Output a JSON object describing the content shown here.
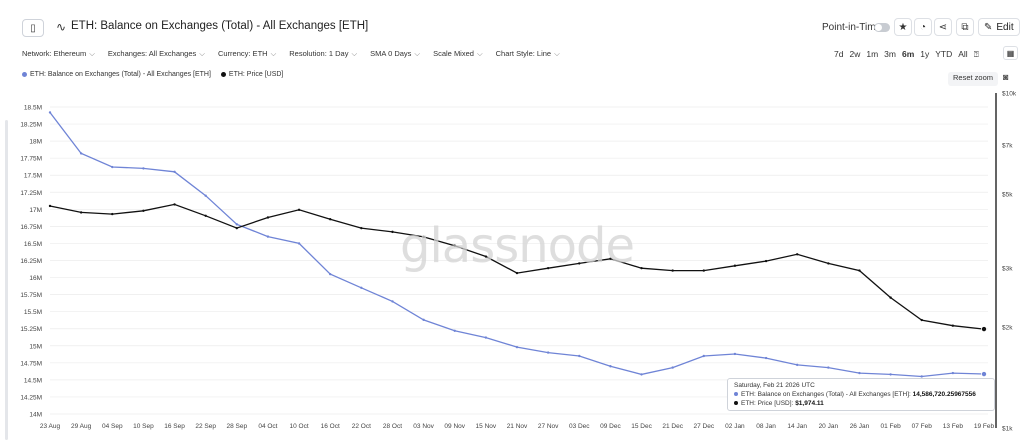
{
  "header": {
    "title": "ETH: Balance on Exchanges (Total) - All Exchanges [ETH]",
    "point_in_time_label": "Point-in-Time",
    "edit_label": "Edit"
  },
  "filters": [
    "Network: Ethereum",
    "Exchanges: All Exchanges",
    "Currency: ETH",
    "Resolution: 1 Day",
    "SMA 0 Days",
    "Scale Mixed",
    "Chart Style: Line"
  ],
  "ranges": [
    "7d",
    "2w",
    "1m",
    "3m",
    "6m",
    "1y",
    "YTD",
    "All"
  ],
  "active_range": "6m",
  "reset_zoom_label": "Reset zoom",
  "watermark": "glassnode",
  "tooltip": {
    "date": "Saturday, Feb 21 2026 UTC",
    "series1_label": "ETH: Balance on Exchanges (Total) - All Exchanges [ETH]:",
    "series1_value": "14,586,720.25967556",
    "series2_label": "ETH: Price [USD]:",
    "series2_value": "$1,974.11"
  },
  "colors": {
    "balance": "#6f84d6",
    "price": "#111111",
    "grid": "#ececec"
  },
  "chart_data": {
    "type": "line",
    "x_categories": [
      "23 Aug",
      "29 Aug",
      "04 Sep",
      "10 Sep",
      "16 Sep",
      "22 Sep",
      "28 Sep",
      "04 Oct",
      "10 Oct",
      "16 Oct",
      "22 Oct",
      "28 Oct",
      "03 Nov",
      "09 Nov",
      "15 Nov",
      "21 Nov",
      "27 Nov",
      "03 Dec",
      "09 Dec",
      "15 Dec",
      "21 Dec",
      "27 Dec",
      "02 Jan",
      "08 Jan",
      "14 Jan",
      "20 Jan",
      "26 Jan",
      "01 Feb",
      "07 Feb",
      "13 Feb",
      "19 Feb"
    ],
    "left_axis": {
      "ylim": [
        14000000,
        18500000
      ],
      "ticks": [
        18500000,
        18250000,
        18000000,
        17750000,
        17500000,
        17250000,
        17000000,
        16750000,
        16500000,
        16250000,
        16000000,
        15750000,
        15500000,
        15250000,
        15000000,
        14750000,
        14500000,
        14250000,
        14000000
      ],
      "tick_labels": [
        "18.5M",
        "18.25M",
        "18M",
        "17.75M",
        "17.5M",
        "17.25M",
        "17M",
        "16.75M",
        "16.5M",
        "16.25M",
        "16M",
        "15.75M",
        "15.5M",
        "15.25M",
        "15M",
        "14.75M",
        "14.5M",
        "14.25M",
        "14M"
      ]
    },
    "right_axis": {
      "scale": "log",
      "ylim": [
        1000,
        10000
      ],
      "ticks": [
        10000,
        7000,
        5000,
        3000,
        2000,
        1000
      ],
      "tick_labels": [
        "$10k",
        "$7k",
        "$5k",
        "$3k",
        "$2k",
        "$1k"
      ]
    },
    "series": [
      {
        "name": "ETH: Balance on Exchanges (Total) - All Exchanges [ETH]",
        "axis": "left",
        "values": [
          18.42,
          17.82,
          17.62,
          17.6,
          17.55,
          17.2,
          16.78,
          16.6,
          16.5,
          16.05,
          15.85,
          15.65,
          15.38,
          15.22,
          15.12,
          14.98,
          14.9,
          14.85,
          14.7,
          14.58,
          14.68,
          14.85,
          14.88,
          14.82,
          14.72,
          14.68,
          14.6,
          14.58,
          14.55,
          14.6,
          14.586
        ]
      },
      {
        "name": "ETH: Price [USD]",
        "axis": "right",
        "values": [
          4600,
          4400,
          4350,
          4450,
          4650,
          4300,
          3950,
          4250,
          4480,
          4200,
          3950,
          3850,
          3720,
          3500,
          3250,
          2900,
          3000,
          3100,
          3200,
          3000,
          2950,
          2950,
          3050,
          3150,
          3300,
          3100,
          2950,
          2450,
          2100,
          2020,
          1974.11
        ]
      }
    ]
  }
}
